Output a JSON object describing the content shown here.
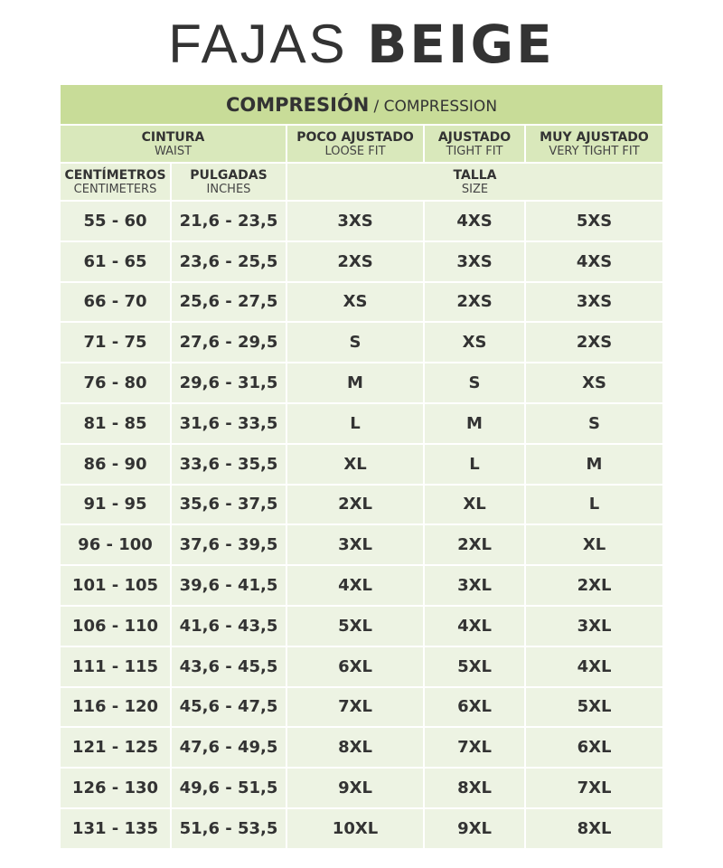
{
  "title": {
    "light": "FAJAS",
    "bold": "BEIGE"
  },
  "compression": {
    "es": "COMPRESIÓN",
    "en": "/ COMPRESSION"
  },
  "headers": {
    "waist": {
      "es": "CINTURA",
      "en": "WAIST"
    },
    "loose": {
      "es": "POCO AJUSTADO",
      "en": "LOOSE FIT"
    },
    "tight": {
      "es": "AJUSTADO",
      "en": "TIGHT FIT"
    },
    "very_tight": {
      "es": "MUY AJUSTADO",
      "en": "VERY TIGHT FIT"
    },
    "cm": {
      "es": "CENTÍMETROS",
      "en": "CENTIMETERS"
    },
    "in": {
      "es": "PULGADAS",
      "en": "INCHES"
    },
    "size": {
      "es": "TALLA",
      "en": "SIZE"
    }
  },
  "colors": {
    "band": "#c8dc98",
    "header": "#d9e8bb",
    "subheader": "#e9f1da",
    "row": "#edf3e3"
  },
  "rows": [
    [
      "55 - 60",
      "21,6 - 23,5",
      "3XS",
      "4XS",
      "5XS"
    ],
    [
      "61 - 65",
      "23,6 - 25,5",
      "2XS",
      "3XS",
      "4XS"
    ],
    [
      "66 - 70",
      "25,6 - 27,5",
      "XS",
      "2XS",
      "3XS"
    ],
    [
      "71 - 75",
      "27,6 - 29,5",
      "S",
      "XS",
      "2XS"
    ],
    [
      "76 - 80",
      "29,6 - 31,5",
      "M",
      "S",
      "XS"
    ],
    [
      "81 - 85",
      "31,6 - 33,5",
      "L",
      "M",
      "S"
    ],
    [
      "86 - 90",
      "33,6 - 35,5",
      "XL",
      "L",
      "M"
    ],
    [
      "91 - 95",
      "35,6 - 37,5",
      "2XL",
      "XL",
      "L"
    ],
    [
      "96 - 100",
      "37,6 - 39,5",
      "3XL",
      "2XL",
      "XL"
    ],
    [
      "101 - 105",
      "39,6 - 41,5",
      "4XL",
      "3XL",
      "2XL"
    ],
    [
      "106 - 110",
      "41,6 - 43,5",
      "5XL",
      "4XL",
      "3XL"
    ],
    [
      "111 - 115",
      "43,6 - 45,5",
      "6XL",
      "5XL",
      "4XL"
    ],
    [
      "116 - 120",
      "45,6 - 47,5",
      "7XL",
      "6XL",
      "5XL"
    ],
    [
      "121 - 125",
      "47,6 - 49,5",
      "8XL",
      "7XL",
      "6XL"
    ],
    [
      "126 - 130",
      "49,6 - 51,5",
      "9XL",
      "8XL",
      "7XL"
    ],
    [
      "131 - 135",
      "51,6 - 53,5",
      "10XL",
      "9XL",
      "8XL"
    ]
  ]
}
